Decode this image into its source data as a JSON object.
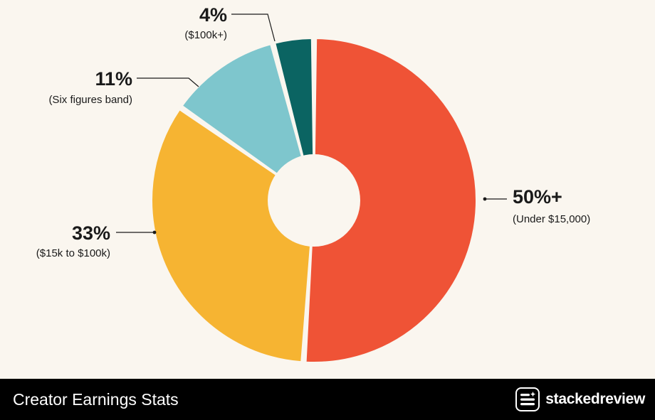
{
  "chart_data": {
    "type": "pie",
    "slices": [
      {
        "value": 50,
        "label": "50%+",
        "sublabel": "(Under $15,000)",
        "color": "#ef5336"
      },
      {
        "value": 33,
        "label": "33%",
        "sublabel": "($15k to $100k)",
        "color": "#f6b432"
      },
      {
        "value": 11,
        "label": "11%",
        "sublabel": "(Six figures band)",
        "color": "#7ec6cd"
      },
      {
        "value": 4,
        "label": "4%",
        "sublabel": "($100k+)",
        "color": "#0b6462"
      }
    ],
    "style": "donut",
    "background": "#faf6ef"
  },
  "footer": {
    "title": "Creator Earnings Stats",
    "brand": "stackedreview",
    "brand_icon": "stacked-review-logo-icon"
  }
}
